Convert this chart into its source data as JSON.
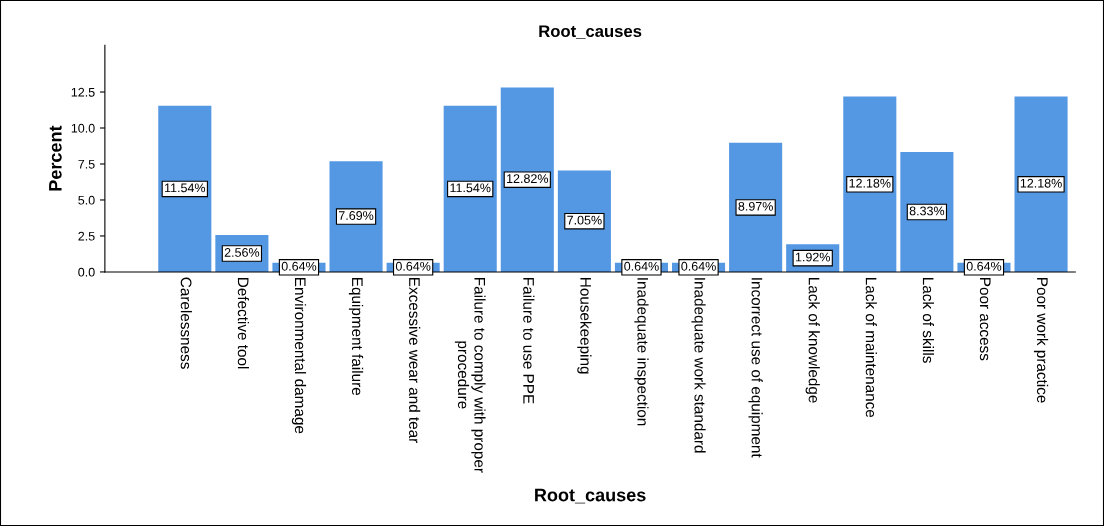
{
  "chart_data": {
    "type": "bar",
    "title": "Root_causes",
    "xlabel": "Root_causes",
    "ylabel": "Percent",
    "categories": [
      "Carelessness",
      "Defective tool",
      "Environmental damage",
      "Equipment failure",
      "Excessive wear and tear",
      "Failure to comply with proper procedure",
      "Failure to use PPE",
      "Housekeeping",
      "Inadequate inspection",
      "Inadequate work standard",
      "Incorrect use of equipment",
      "Lack of knowledge",
      "Lack of maintenance",
      "Lack of skills",
      "Poor access",
      "Poor work practice"
    ],
    "values": [
      11.54,
      2.56,
      0.64,
      7.69,
      0.64,
      11.54,
      12.82,
      7.05,
      0.64,
      0.64,
      8.97,
      1.92,
      12.18,
      8.33,
      0.64,
      12.18
    ],
    "value_labels": [
      "11.54%",
      "2.56%",
      "0.64%",
      "7.69%",
      "0.64%",
      "11.54%",
      "12.82%",
      "7.05%",
      "0.64%",
      "0.64%",
      "8.97%",
      "1.92%",
      "12.18%",
      "8.33%",
      "0.64%",
      "12.18%"
    ],
    "color": "#5497e3",
    "ylim": [
      0,
      15.75
    ],
    "yticks": [
      {
        "value": 0,
        "label": "0.0"
      },
      {
        "value": 2.5,
        "label": "2.5"
      },
      {
        "value": 5,
        "label": "5.0"
      },
      {
        "value": 7.5,
        "label": "7.5"
      },
      {
        "value": 10,
        "label": "10.0"
      },
      {
        "value": 12.5,
        "label": "12.5"
      }
    ],
    "grid": false,
    "legend": false
  }
}
